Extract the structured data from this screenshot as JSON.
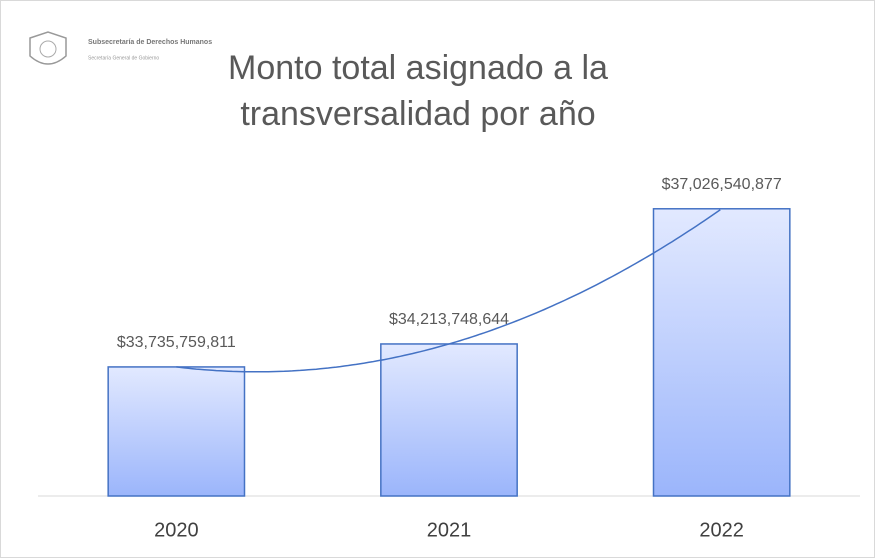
{
  "header": {
    "org": "Subsecretaría de Derechos Humanos",
    "dept": "Secretaría General de Gobierno"
  },
  "chart_data": {
    "type": "bar",
    "title": [
      "Monto total asignado a la",
      "transversalidad por año"
    ],
    "categories": [
      "2020",
      "2021",
      "2022"
    ],
    "values": [
      33735759811,
      34213748644,
      37026540877
    ],
    "value_labels": [
      "$33,735,759,811",
      "$34,213,748,644",
      "$37,026,540,877"
    ],
    "color": "#4472c4",
    "ylim": [
      31050000000,
      38000000000
    ],
    "trendline": true
  }
}
